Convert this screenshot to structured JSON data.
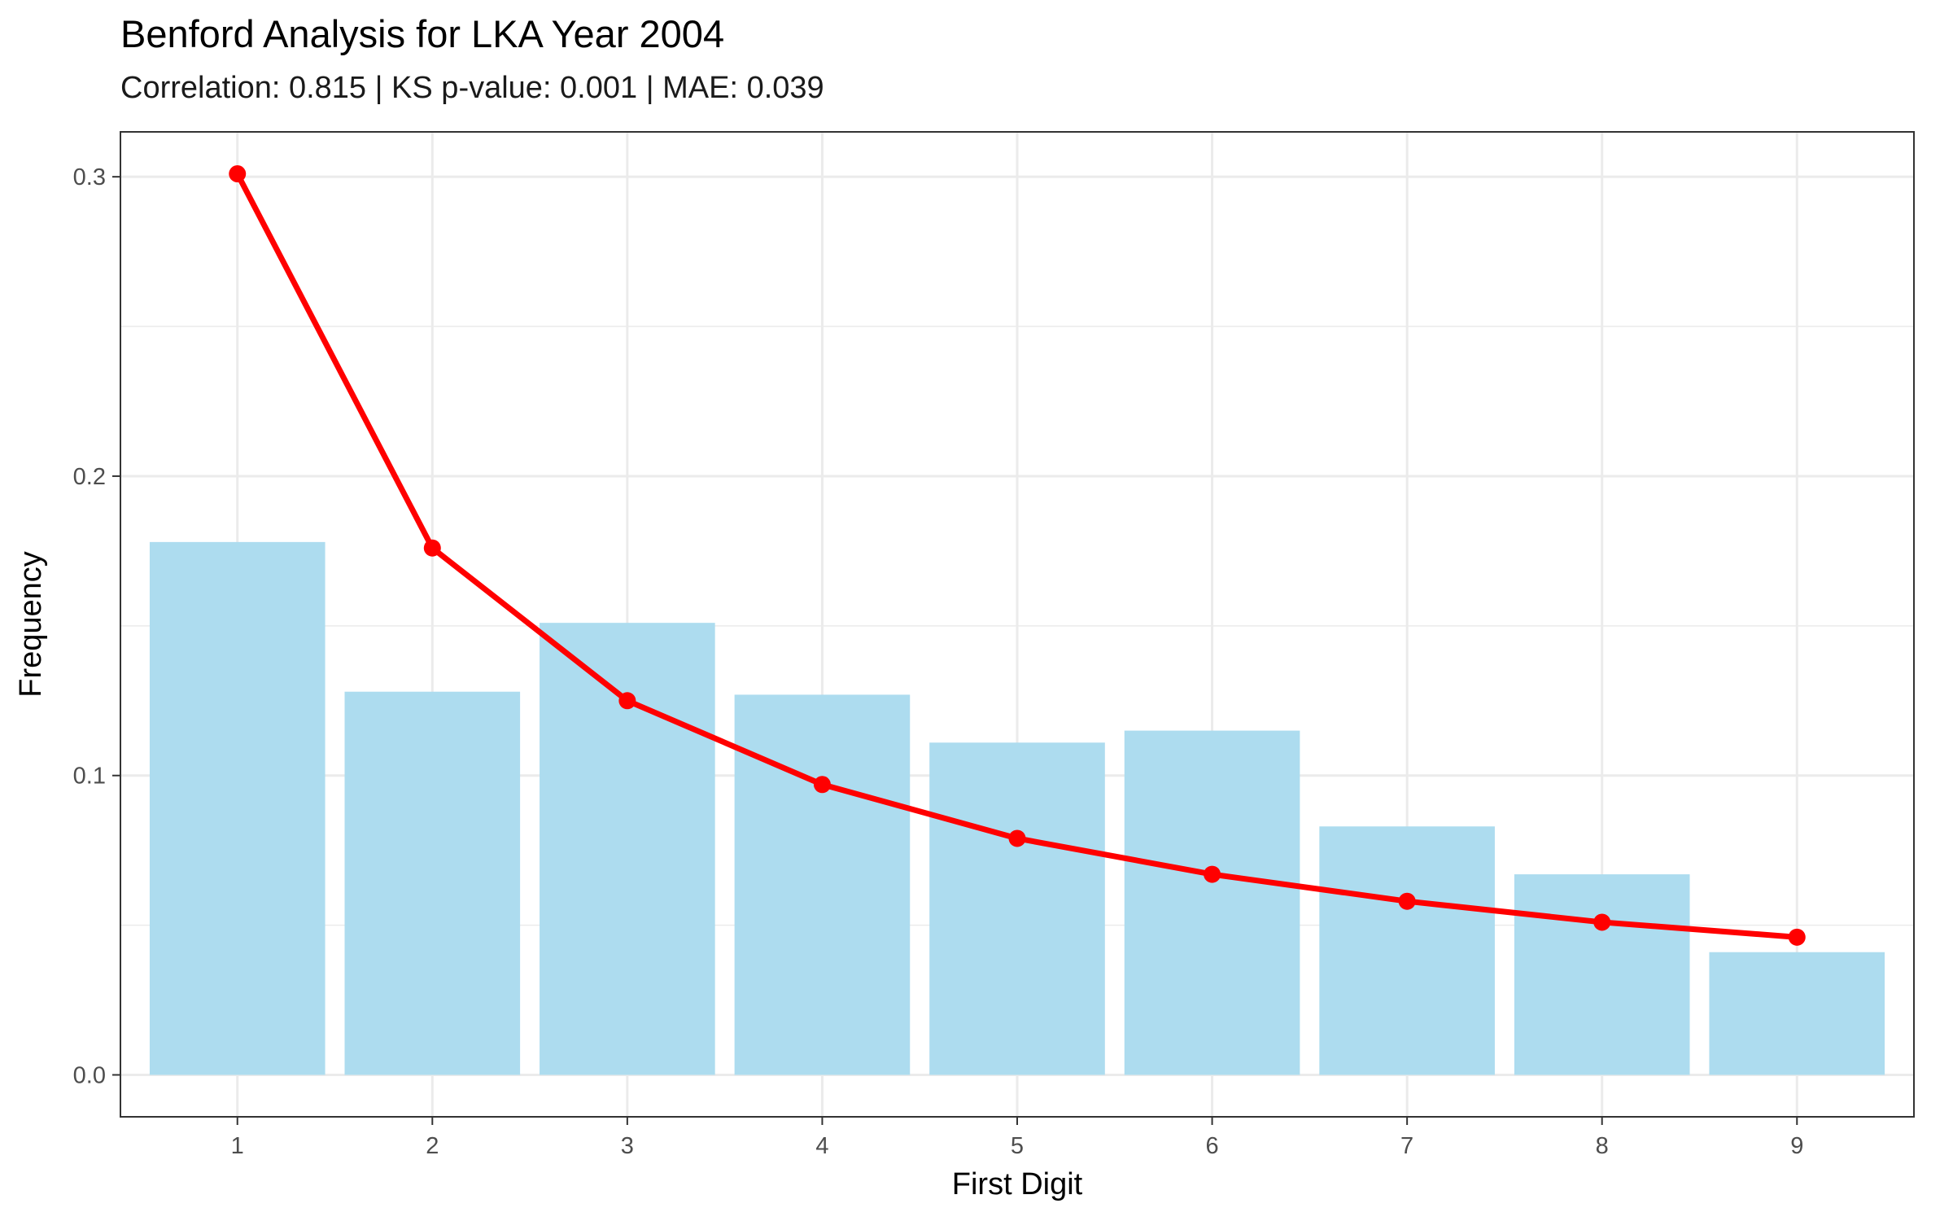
{
  "chart_data": {
    "type": "bar",
    "title": "Benford Analysis for LKA Year 2004",
    "subtitle": "Correlation: 0.815 | KS p-value: 0.001 | MAE: 0.039",
    "xlabel": "First Digit",
    "ylabel": "Frequency",
    "categories": [
      "1",
      "2",
      "3",
      "4",
      "5",
      "6",
      "7",
      "8",
      "9"
    ],
    "series": [
      {
        "type": "bar",
        "values": [
          0.178,
          0.128,
          0.151,
          0.127,
          0.111,
          0.115,
          0.083,
          0.067,
          0.041
        ],
        "color": "#ADDCEF"
      },
      {
        "type": "line",
        "values": [
          0.301,
          0.176,
          0.125,
          0.097,
          0.079,
          0.067,
          0.058,
          0.051,
          0.046
        ],
        "color": "#FF0000"
      }
    ],
    "yticks": [
      "0.0",
      "0.1",
      "0.2",
      "0.3"
    ],
    "ylim": [
      -0.014,
      0.315
    ],
    "xlim": [
      0.4,
      9.6
    ],
    "grid": true,
    "colors": {
      "bar": "#ADDCEF",
      "line": "#FF0000",
      "grid": "#EBEBEB",
      "panel_border": "#333333"
    }
  }
}
